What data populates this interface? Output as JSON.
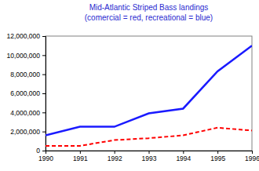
{
  "chart_data": {
    "type": "line",
    "title": "Mid-Atlantic Striped Bass landings",
    "subtitle": "(comercial = red, recreational = blue)",
    "x": [
      1990,
      1991,
      1992,
      1993,
      1994,
      1995,
      1996
    ],
    "series": [
      {
        "color": "#1a1aff",
        "line_style": "solid",
        "values": [
          1600000,
          2500000,
          2500000,
          3900000,
          4400000,
          8300000,
          11000000
        ]
      },
      {
        "color": "#ff0000",
        "line_style": "dashed",
        "values": [
          500000,
          500000,
          1100000,
          1300000,
          1600000,
          2400000,
          2100000
        ]
      }
    ],
    "xlim": [
      1990,
      1996
    ],
    "xticks": [
      1990,
      1991,
      1992,
      1993,
      1994,
      1995,
      1996
    ],
    "ylim": [
      0,
      12000000
    ],
    "yticks": [
      0,
      {
        "value": 2000000,
        "label": "2,000,000"
      },
      {
        "value": 4000000,
        "label": "4,000,000"
      },
      {
        "value": 6000000,
        "label": "6,000,000"
      },
      {
        "value": 8000000,
        "label": "8,000,000"
      },
      {
        "value": 10000000,
        "label": "10,000,000"
      },
      {
        "value": 12000000,
        "label": "12,000,000"
      }
    ],
    "grid": false
  }
}
